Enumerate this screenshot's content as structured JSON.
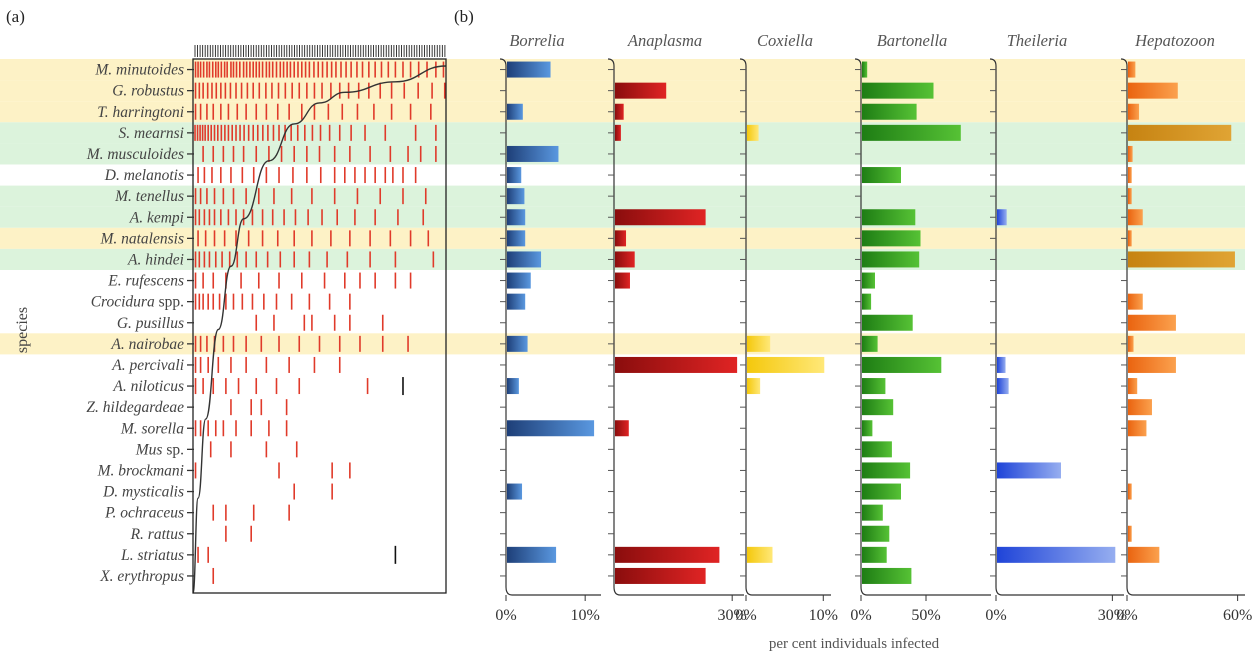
{
  "panels": {
    "a": "(a)",
    "b": "(b)"
  },
  "y_axis_label": "species",
  "x_axis_label": "per cent individuals infected",
  "species": [
    {
      "name": "M. minutoides",
      "italic_part": "M. minutoides",
      "suffix": "",
      "band": "yellow"
    },
    {
      "name": "G. robustus",
      "italic_part": "G. robustus",
      "suffix": "",
      "band": "yellow"
    },
    {
      "name": "T. harringtoni",
      "italic_part": "T. harringtoni",
      "suffix": "",
      "band": "yellow"
    },
    {
      "name": "S. mearnsi",
      "italic_part": "S. mearnsi",
      "suffix": "",
      "band": "green"
    },
    {
      "name": "M. musculoides",
      "italic_part": "M. musculoides",
      "suffix": "",
      "band": "green"
    },
    {
      "name": "D. melanotis",
      "italic_part": "D. melanotis",
      "suffix": "",
      "band": "none"
    },
    {
      "name": "M. tenellus",
      "italic_part": "M. tenellus",
      "suffix": "",
      "band": "green"
    },
    {
      "name": "A. kempi",
      "italic_part": "A. kempi",
      "suffix": "",
      "band": "green"
    },
    {
      "name": "M. natalensis",
      "italic_part": "M. natalensis",
      "suffix": "",
      "band": "yellow"
    },
    {
      "name": "A. hindei",
      "italic_part": "A. hindei",
      "suffix": "",
      "band": "green"
    },
    {
      "name": "E. rufescens",
      "italic_part": "E. rufescens",
      "suffix": "",
      "band": "none"
    },
    {
      "name": "Crocidura spp.",
      "italic_part": "Crocidura",
      "suffix": " spp.",
      "band": "none"
    },
    {
      "name": "G. pusillus",
      "italic_part": "G. pusillus",
      "suffix": "",
      "band": "none"
    },
    {
      "name": "A. nairobae",
      "italic_part": "A. nairobae",
      "suffix": "",
      "band": "yellow"
    },
    {
      "name": "A. percivali",
      "italic_part": "A. percivali",
      "suffix": "",
      "band": "none"
    },
    {
      "name": "A. niloticus",
      "italic_part": "A. niloticus",
      "suffix": "",
      "band": "none"
    },
    {
      "name": "Z. hildegardeae",
      "italic_part": "Z. hildegardeae",
      "suffix": "",
      "band": "none"
    },
    {
      "name": "M. sorella",
      "italic_part": "M. sorella",
      "suffix": "",
      "band": "none"
    },
    {
      "name": "Mus sp.",
      "italic_part": "Mus",
      "suffix": " sp.",
      "band": "none"
    },
    {
      "name": "M. brockmani",
      "italic_part": "M. brockmani",
      "suffix": "",
      "band": "none"
    },
    {
      "name": "D. mysticalis",
      "italic_part": "D. mysticalis",
      "suffix": "",
      "band": "none"
    },
    {
      "name": "P. ochraceus",
      "italic_part": "P. ochraceus",
      "suffix": "",
      "band": "none"
    },
    {
      "name": "R. rattus",
      "italic_part": "R. rattus",
      "suffix": "",
      "band": "none"
    },
    {
      "name": "L. striatus",
      "italic_part": "L. striatus",
      "suffix": "",
      "band": "none"
    },
    {
      "name": "X. erythropus",
      "italic_part": "X. erythropus",
      "suffix": "",
      "band": "none"
    }
  ],
  "colors": {
    "band_yellow": "#fdf2c6",
    "band_green": "#dcf3dc",
    "rug": "#e03a2a",
    "rug_black": "#111111"
  },
  "chart_data": [
    {
      "type": "rug",
      "panel": "(a)",
      "rows": [
        {
          "species": "M. minutoides",
          "marks": [
            0.01,
            0.02,
            0.03,
            0.042,
            0.055,
            0.065,
            0.078,
            0.09,
            0.1,
            0.112,
            0.125,
            0.135,
            0.15,
            0.16,
            0.172,
            0.185,
            0.2,
            0.212,
            0.225,
            0.238,
            0.25,
            0.262,
            0.275,
            0.29,
            0.302,
            0.315,
            0.33,
            0.345,
            0.358,
            0.372,
            0.385,
            0.4,
            0.415,
            0.43,
            0.445,
            0.46,
            0.478,
            0.495,
            0.512,
            0.53,
            0.548,
            0.565,
            0.585,
            0.605,
            0.625,
            0.648,
            0.67,
            0.695,
            0.72,
            0.745,
            0.772,
            0.8,
            0.83,
            0.86,
            0.892,
            0.925,
            0.96,
            0.99
          ]
        },
        {
          "species": "G. robustus",
          "marks": [
            0.01,
            0.025,
            0.04,
            0.058,
            0.075,
            0.092,
            0.11,
            0.128,
            0.148,
            0.17,
            0.192,
            0.215,
            0.238,
            0.262,
            0.288,
            0.312,
            0.338,
            0.365,
            0.392,
            0.42,
            0.45,
            0.48,
            0.51,
            0.545,
            0.58,
            0.615,
            0.655,
            0.695,
            0.74,
            0.785,
            0.835,
            0.89,
            0.945,
            0.995
          ]
        },
        {
          "species": "T. harringtoni",
          "marks": [
            0.01,
            0.03,
            0.055,
            0.08,
            0.11,
            0.14,
            0.175,
            0.21,
            0.25,
            0.29,
            0.335,
            0.38,
            0.43,
            0.48,
            0.535,
            0.59,
            0.65,
            0.715,
            0.785,
            0.86,
            0.94
          ]
        },
        {
          "species": "S. mearnsi",
          "marks": [
            0.008,
            0.018,
            0.028,
            0.038,
            0.048,
            0.06,
            0.072,
            0.085,
            0.098,
            0.112,
            0.126,
            0.14,
            0.155,
            0.17,
            0.186,
            0.202,
            0.22,
            0.238,
            0.256,
            0.276,
            0.296,
            0.318,
            0.34,
            0.364,
            0.388,
            0.414,
            0.442,
            0.472,
            0.504,
            0.54,
            0.58,
            0.625,
            0.68,
            0.76,
            0.88,
            0.96
          ]
        },
        {
          "species": "M. musculoides",
          "marks": [
            0.04,
            0.08,
            0.12,
            0.16,
            0.2,
            0.25,
            0.3,
            0.35,
            0.4,
            0.45,
            0.5,
            0.56,
            0.62,
            0.7,
            0.78,
            0.85,
            0.9,
            0.96
          ]
        },
        {
          "species": "D. melanotis",
          "marks": [
            0.02,
            0.045,
            0.075,
            0.11,
            0.15,
            0.195,
            0.24,
            0.29,
            0.34,
            0.395,
            0.45,
            0.505,
            0.56,
            0.6,
            0.64,
            0.68,
            0.72,
            0.76,
            0.79,
            0.83,
            0.88
          ]
        },
        {
          "species": "M. tenellus",
          "marks": [
            0.01,
            0.03,
            0.055,
            0.085,
            0.12,
            0.16,
            0.21,
            0.26,
            0.32,
            0.39,
            0.47,
            0.56,
            0.65,
            0.74,
            0.83,
            0.92
          ]
        },
        {
          "species": "A. kempi",
          "marks": [
            0.01,
            0.025,
            0.045,
            0.065,
            0.085,
            0.11,
            0.14,
            0.17,
            0.2,
            0.235,
            0.275,
            0.315,
            0.36,
            0.405,
            0.455,
            0.51,
            0.57,
            0.64,
            0.72,
            0.81,
            0.91
          ]
        },
        {
          "species": "M. natalensis",
          "marks": [
            0.02,
            0.05,
            0.085,
            0.125,
            0.17,
            0.22,
            0.275,
            0.335,
            0.4,
            0.47,
            0.545,
            0.62,
            0.7,
            0.78,
            0.86,
            0.93
          ]
        },
        {
          "species": "A. hindei",
          "marks": [
            0.01,
            0.025,
            0.045,
            0.065,
            0.09,
            0.115,
            0.145,
            0.175,
            0.21,
            0.25,
            0.295,
            0.345,
            0.4,
            0.46,
            0.53,
            0.61,
            0.7,
            0.8,
            0.95
          ]
        },
        {
          "species": "E. rufescens",
          "marks": [
            0.01,
            0.04,
            0.08,
            0.13,
            0.19,
            0.26,
            0.34,
            0.43,
            0.52,
            0.6,
            0.66,
            0.72,
            0.8,
            0.86
          ]
        },
        {
          "species": "Crocidura spp.",
          "marks": [
            0.01,
            0.025,
            0.04,
            0.06,
            0.08,
            0.105,
            0.13,
            0.16,
            0.195,
            0.235,
            0.28,
            0.33,
            0.39,
            0.46,
            0.54,
            0.62
          ]
        },
        {
          "species": "G. pusillus",
          "marks": [
            0.25,
            0.32,
            0.44,
            0.47,
            0.56,
            0.62,
            0.75
          ]
        },
        {
          "species": "A. nairobae",
          "marks": [
            0.01,
            0.03,
            0.055,
            0.085,
            0.12,
            0.16,
            0.21,
            0.27,
            0.34,
            0.42,
            0.5,
            0.58,
            0.66,
            0.75,
            0.85
          ]
        },
        {
          "species": "A. percivali",
          "marks": [
            0.01,
            0.03,
            0.06,
            0.1,
            0.15,
            0.21,
            0.29,
            0.38,
            0.48,
            0.58
          ]
        },
        {
          "species": "A. niloticus",
          "marks": [
            0.01,
            0.04,
            0.08,
            0.13,
            0.18,
            0.25,
            0.33,
            0.42,
            0.69
          ]
        },
        {
          "species": "A. niloticus",
          "black": [
            0.83
          ]
        },
        {
          "species": "Z. hildegardeae",
          "marks": [
            0.15,
            0.23,
            0.27,
            0.37
          ]
        },
        {
          "species": "M. sorella",
          "marks": [
            0.01,
            0.03,
            0.06,
            0.09,
            0.12,
            0.17,
            0.23,
            0.3,
            0.37
          ]
        },
        {
          "species": "Mus sp.",
          "marks": [
            0.07,
            0.15,
            0.29,
            0.41
          ]
        },
        {
          "species": "M. brockmani",
          "marks": [
            0.01,
            0.34,
            0.55,
            0.62
          ]
        },
        {
          "species": "D. mysticalis",
          "marks": [
            0.4,
            0.55
          ]
        },
        {
          "species": "P. ochraceus",
          "marks": [
            0.08,
            0.13,
            0.24,
            0.38
          ]
        },
        {
          "species": "R. rattus",
          "marks": [
            0.13,
            0.23
          ]
        },
        {
          "species": "L. striatus",
          "marks": [
            0.02,
            0.06
          ]
        },
        {
          "species": "L. striatus",
          "black": [
            0.8
          ]
        },
        {
          "species": "X. erythropus",
          "marks": [
            0.08
          ]
        }
      ],
      "curve": [
        [
          0,
          0
        ],
        [
          0.02,
          0.18
        ],
        [
          0.05,
          0.33
        ],
        [
          0.1,
          0.5
        ],
        [
          0.15,
          0.62
        ],
        [
          0.2,
          0.71
        ],
        [
          0.3,
          0.82
        ],
        [
          0.4,
          0.89
        ],
        [
          0.5,
          0.93
        ],
        [
          0.6,
          0.95
        ],
        [
          0.8,
          0.97
        ],
        [
          1.0,
          1.0
        ]
      ]
    },
    {
      "type": "bar",
      "panel": "(b)",
      "series": [
        {
          "name": "Borrelia",
          "axis_max": 12,
          "tick_labels": [
            "0%",
            "10%"
          ],
          "tick_values": [
            0,
            10
          ],
          "color_dark": "#1e3f78",
          "color_light": "#5a98e0",
          "values": [
            5.5,
            null,
            2.0,
            null,
            6.5,
            1.8,
            2.2,
            2.3,
            2.3,
            4.3,
            3.0,
            2.3,
            null,
            2.6,
            null,
            1.5,
            null,
            11.0,
            null,
            null,
            1.9,
            null,
            null,
            6.2,
            null
          ]
        },
        {
          "name": "Anaplasma",
          "axis_max": 33,
          "tick_labels": [
            "30%"
          ],
          "tick_values": [
            30
          ],
          "color_dark": "#8a0d0d",
          "color_light": "#e02424",
          "values": [
            null,
            13,
            2.2,
            1.5,
            null,
            null,
            null,
            23,
            2.8,
            5.0,
            3.8,
            null,
            null,
            null,
            31,
            null,
            null,
            3.5,
            null,
            null,
            null,
            null,
            null,
            26.5,
            23
          ]
        },
        {
          "name": "Coxiella",
          "axis_max": 11,
          "tick_labels": [
            "0%",
            "10%"
          ],
          "tick_values": [
            0,
            10
          ],
          "color_dark": "#f4c80c",
          "color_light": "#ffe878",
          "values": [
            null,
            null,
            null,
            1.5,
            null,
            null,
            null,
            null,
            null,
            null,
            null,
            null,
            null,
            3.0,
            10.0,
            1.7,
            null,
            null,
            null,
            null,
            null,
            null,
            null,
            3.3,
            null
          ]
        },
        {
          "name": "Bartonella",
          "axis_max": 100,
          "tick_labels": [
            "0%",
            "50%"
          ],
          "tick_values": [
            0,
            50
          ],
          "color_dark": "#1e7d14",
          "color_light": "#56c235",
          "values": [
            4,
            55,
            42,
            76,
            null,
            30,
            null,
            41,
            45,
            44,
            10,
            7,
            39,
            12,
            61,
            18,
            24,
            8,
            23,
            37,
            30,
            16,
            21,
            19,
            38
          ]
        },
        {
          "name": "Theileria",
          "axis_max": 33,
          "tick_labels": [
            "0%",
            "30%"
          ],
          "tick_values": [
            0,
            30
          ],
          "color_dark": "#1f44d8",
          "color_light": "#96aef0",
          "values": [
            null,
            null,
            null,
            null,
            null,
            null,
            null,
            2.5,
            null,
            null,
            null,
            null,
            null,
            null,
            2.2,
            3.0,
            null,
            null,
            null,
            16.5,
            null,
            null,
            null,
            30.5,
            null
          ]
        },
        {
          "name": "Hepatozoon",
          "axis_max": 64,
          "tick_labels": [
            "0%",
            "60%"
          ],
          "tick_values": [
            0,
            60
          ],
          "color_dark": "#ea6410",
          "color_light": "#fba14e",
          "values": [
            4,
            27,
            6,
            56,
            2.5,
            2,
            2,
            8,
            2,
            58,
            null,
            8,
            26,
            3,
            26,
            5,
            13,
            10,
            null,
            null,
            2,
            null,
            2,
            17,
            null
          ]
        }
      ],
      "hepatozoon_green_rows": [
        3,
        9
      ],
      "colors_green_hep": {
        "dark": "#c68312",
        "light": "#e0a434"
      }
    }
  ]
}
